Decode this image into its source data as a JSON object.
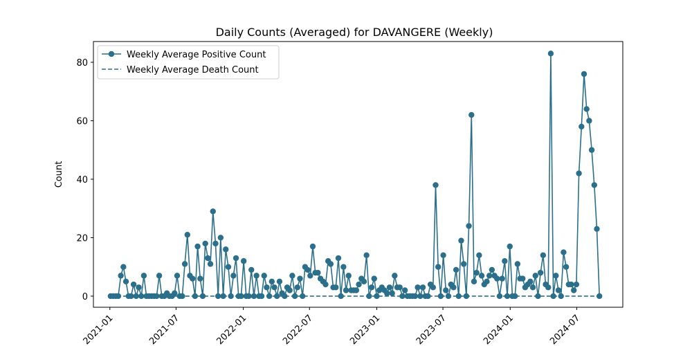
{
  "chart_data": {
    "type": "line",
    "title": "Daily Counts (Averaged) for DAVANGERE (Weekly)",
    "ylabel": "Count",
    "x": [
      "2021-01-03",
      "2021-01-10",
      "2021-01-17",
      "2021-01-24",
      "2021-01-31",
      "2021-02-07",
      "2021-02-14",
      "2021-02-21",
      "2021-02-28",
      "2021-03-07",
      "2021-03-14",
      "2021-03-21",
      "2021-03-28",
      "2021-04-04",
      "2021-04-11",
      "2021-04-18",
      "2021-04-25",
      "2021-05-02",
      "2021-05-09",
      "2021-05-16",
      "2021-05-23",
      "2021-05-30",
      "2021-06-06",
      "2021-06-13",
      "2021-06-20",
      "2021-06-27",
      "2021-07-04",
      "2021-07-11",
      "2021-07-18",
      "2021-07-25",
      "2021-08-01",
      "2021-08-08",
      "2021-08-15",
      "2021-08-22",
      "2021-08-29",
      "2021-09-05",
      "2021-09-12",
      "2021-09-19",
      "2021-09-26",
      "2021-10-03",
      "2021-10-10",
      "2021-10-17",
      "2021-10-24",
      "2021-10-31",
      "2021-11-07",
      "2021-11-14",
      "2021-11-21",
      "2021-11-28",
      "2021-12-05",
      "2021-12-12",
      "2021-12-19",
      "2021-12-26",
      "2022-01-02",
      "2022-01-09",
      "2022-01-16",
      "2022-01-23",
      "2022-01-30",
      "2022-02-06",
      "2022-02-13",
      "2022-02-20",
      "2022-02-27",
      "2022-03-06",
      "2022-03-13",
      "2022-03-20",
      "2022-03-27",
      "2022-04-03",
      "2022-04-10",
      "2022-04-17",
      "2022-04-24",
      "2022-05-01",
      "2022-05-08",
      "2022-05-15",
      "2022-05-22",
      "2022-05-29",
      "2022-06-05",
      "2022-06-12",
      "2022-06-19",
      "2022-06-26",
      "2022-07-03",
      "2022-07-10",
      "2022-07-17",
      "2022-07-24",
      "2022-07-31",
      "2022-08-07",
      "2022-08-14",
      "2022-08-21",
      "2022-08-28",
      "2022-09-04",
      "2022-09-11",
      "2022-09-18",
      "2022-09-25",
      "2022-10-02",
      "2022-10-09",
      "2022-10-16",
      "2022-10-23",
      "2022-10-30",
      "2022-11-06",
      "2022-11-13",
      "2022-11-20",
      "2022-11-27",
      "2022-12-04",
      "2022-12-11",
      "2022-12-18",
      "2022-12-25",
      "2023-01-01",
      "2023-01-08",
      "2023-01-15",
      "2023-01-22",
      "2023-01-29",
      "2023-02-05",
      "2023-02-12",
      "2023-02-19",
      "2023-02-26",
      "2023-03-05",
      "2023-03-12",
      "2023-03-19",
      "2023-03-26",
      "2023-04-02",
      "2023-04-09",
      "2023-04-16",
      "2023-04-23",
      "2023-04-30",
      "2023-05-07",
      "2023-05-14",
      "2023-05-21",
      "2023-05-28",
      "2023-06-04",
      "2023-06-11",
      "2023-06-18",
      "2023-06-25",
      "2023-07-02",
      "2023-07-09",
      "2023-07-16",
      "2023-07-23",
      "2023-07-30",
      "2023-08-06",
      "2023-08-13",
      "2023-08-20",
      "2023-08-27",
      "2023-09-03",
      "2023-09-10",
      "2023-09-17",
      "2023-09-24",
      "2023-10-01",
      "2023-10-08",
      "2023-10-15",
      "2023-10-22",
      "2023-10-29",
      "2023-11-05",
      "2023-11-12",
      "2023-11-19",
      "2023-11-26",
      "2023-12-03",
      "2023-12-10",
      "2023-12-17",
      "2023-12-24",
      "2023-12-31",
      "2024-01-07",
      "2024-01-14",
      "2024-01-21",
      "2024-01-28",
      "2024-02-04",
      "2024-02-11",
      "2024-02-18",
      "2024-02-25",
      "2024-03-03",
      "2024-03-10",
      "2024-03-17",
      "2024-03-24",
      "2024-03-31",
      "2024-04-07",
      "2024-04-14",
      "2024-04-21",
      "2024-04-28",
      "2024-05-05",
      "2024-05-12",
      "2024-05-19",
      "2024-05-26",
      "2024-06-02",
      "2024-06-09",
      "2024-06-16",
      "2024-06-23",
      "2024-06-30",
      "2024-07-07",
      "2024-07-14",
      "2024-07-21",
      "2024-07-28",
      "2024-08-04",
      "2024-08-11",
      "2024-08-18",
      "2024-08-25",
      "2024-09-01"
    ],
    "series": [
      {
        "name": "Weekly Average Positive Count",
        "color": "#2b6f8a",
        "style": "solid",
        "marker": true,
        "values": [
          0,
          0,
          0,
          0,
          7,
          10,
          5,
          0,
          0,
          4,
          0,
          3,
          0,
          7,
          0,
          0,
          0,
          0,
          0,
          7,
          0,
          0,
          1,
          0,
          0,
          1,
          7,
          0,
          0,
          11,
          21,
          7,
          6,
          0,
          17,
          6,
          0,
          18,
          13,
          11,
          29,
          18,
          0,
          20,
          0,
          16,
          10,
          0,
          7,
          13,
          0,
          0,
          12,
          0,
          0,
          9,
          0,
          7,
          0,
          0,
          7,
          3,
          0,
          5,
          3,
          0,
          5,
          1,
          0,
          3,
          2,
          7,
          0,
          3,
          6,
          0,
          10,
          9,
          7,
          17,
          8,
          8,
          6,
          5,
          4,
          12,
          11,
          3,
          3,
          13,
          0,
          10,
          2,
          7,
          2,
          2,
          2,
          4,
          6,
          5,
          14,
          0,
          3,
          6,
          0,
          2,
          3,
          2,
          1,
          3,
          1,
          7,
          3,
          3,
          0,
          2,
          0,
          0,
          0,
          0,
          3,
          0,
          3,
          0,
          0,
          4,
          3,
          38,
          10,
          0,
          14,
          2,
          0,
          4,
          3,
          9,
          0,
          19,
          11,
          0,
          24,
          62,
          5,
          8,
          14,
          7,
          4,
          5,
          7,
          9,
          7,
          6,
          0,
          6,
          12,
          0,
          17,
          0,
          0,
          11,
          6,
          6,
          3,
          4,
          5,
          3,
          7,
          0,
          8,
          14,
          4,
          3,
          83,
          0,
          7,
          2,
          0,
          15,
          10,
          4,
          4,
          2,
          4,
          42,
          58,
          76,
          64,
          60,
          50,
          38,
          23,
          0
        ]
      },
      {
        "name": "Weekly Average Death Count",
        "color": "#2b6f8a",
        "style": "dashed",
        "marker": false,
        "values": [
          0,
          0,
          0,
          0,
          0,
          0,
          0,
          0,
          0,
          0,
          0,
          0,
          0,
          0,
          0,
          0,
          0,
          0,
          0,
          0,
          0,
          0,
          0,
          0,
          0,
          0,
          0,
          0,
          0,
          0,
          0,
          0,
          0,
          0,
          0,
          0,
          0,
          0,
          0,
          0,
          0,
          0,
          0,
          0,
          0,
          0,
          0,
          0,
          0,
          0,
          0,
          0,
          0,
          0,
          0,
          0,
          0,
          0,
          0,
          0,
          0,
          0,
          0,
          0,
          0,
          0,
          0,
          0,
          0,
          0,
          0,
          0,
          0,
          0,
          0,
          0,
          0,
          0,
          0,
          0,
          0,
          0,
          0,
          0,
          0,
          0,
          0,
          0,
          0,
          0,
          0,
          0,
          0,
          0,
          0,
          0,
          0,
          0,
          0,
          0,
          0,
          0,
          0,
          0,
          0,
          0,
          0,
          0,
          0,
          0,
          0,
          0,
          0,
          0,
          0,
          0,
          0,
          0,
          0,
          0,
          0,
          0,
          0,
          0,
          0,
          0,
          0,
          0,
          0,
          0,
          0,
          0,
          0,
          0,
          0,
          0,
          0,
          0,
          0,
          0,
          0,
          0,
          0,
          0,
          0,
          0,
          0,
          0,
          0,
          0,
          0,
          0,
          0,
          0,
          0,
          0,
          0,
          0,
          0,
          0,
          0,
          0,
          0,
          0,
          0,
          0,
          0,
          0,
          0,
          0,
          0,
          0,
          0,
          0,
          0,
          0,
          0,
          0,
          0,
          0,
          0,
          0,
          0,
          0,
          0,
          0,
          0,
          0,
          0,
          0,
          0,
          0
        ]
      }
    ],
    "xlim": [
      "2020-11-17",
      "2024-11-04"
    ],
    "xticks": [
      "2021-01",
      "2021-07",
      "2022-01",
      "2022-07",
      "2023-01",
      "2023-07",
      "2024-01",
      "2024-07"
    ],
    "ylim": [
      -3.8,
      87.1
    ],
    "yticks": [
      0,
      20,
      40,
      60,
      80
    ],
    "legend": "upper left"
  }
}
